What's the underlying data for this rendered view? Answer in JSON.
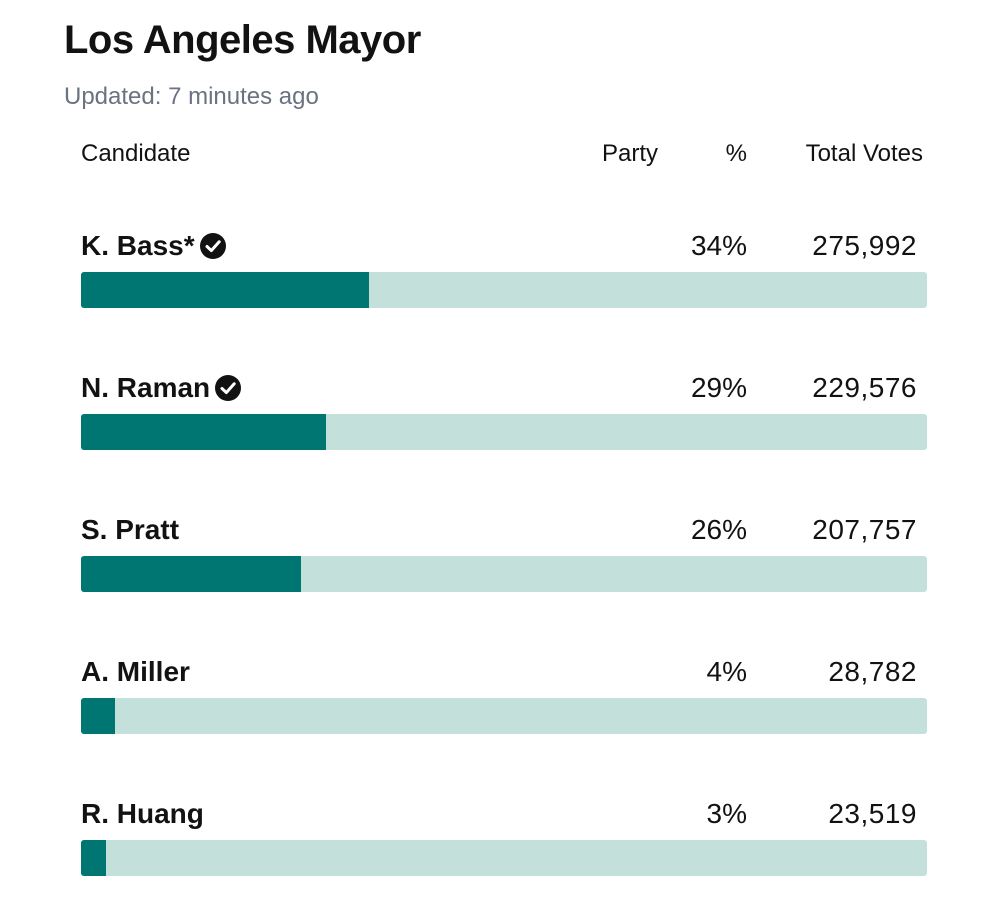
{
  "title": "Los Angeles Mayor",
  "updated": "Updated: 7 minutes ago",
  "headers": {
    "candidate": "Candidate",
    "party": "Party",
    "percent": "%",
    "total_votes": "Total Votes"
  },
  "colors": {
    "bar_fill": "#007672",
    "bar_track": "#c3e0da",
    "check": "#121212"
  },
  "icons": {
    "advanced": "check-circle-icon"
  },
  "chart_data": {
    "type": "bar",
    "orientation": "horizontal",
    "title": "Los Angeles Mayor",
    "categories": [
      "K. Bass*",
      "N. Raman",
      "S. Pratt",
      "A. Miller",
      "R. Huang"
    ],
    "values": [
      34,
      29,
      26,
      4,
      3
    ],
    "votes": [
      "275,992",
      "229,576",
      "207,757",
      "28,782",
      "23,519"
    ],
    "percent_labels": [
      "34%",
      "29%",
      "26%",
      "4%",
      "3%"
    ],
    "advanced": [
      true,
      true,
      false,
      false,
      false
    ],
    "bar_fraction": [
      0.34,
      0.29,
      0.26,
      0.04,
      0.03
    ],
    "xlim": [
      0,
      100
    ],
    "grid": false
  }
}
